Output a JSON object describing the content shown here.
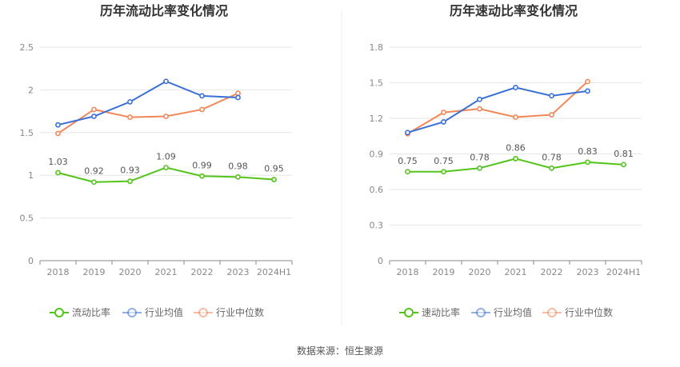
{
  "source": "数据来源：恒生聚源",
  "chart_data": [
    {
      "type": "line",
      "title": "历年流动比率变化情况",
      "categories": [
        "2018",
        "2019",
        "2020",
        "2021",
        "2022",
        "2023",
        "2024H1"
      ],
      "ylim": [
        0,
        2.5
      ],
      "yticks": [
        "0",
        "0.5",
        "1",
        "1.5",
        "2",
        "2.5"
      ],
      "grid": true,
      "legend_position": "bottom",
      "series": [
        {
          "name": "流动比率",
          "color": "#52c41a",
          "labeled": true,
          "values": [
            1.03,
            0.92,
            0.93,
            1.09,
            0.99,
            0.98,
            0.95
          ]
        },
        {
          "name": "行业均值",
          "color": "#3a70d6",
          "labeled": false,
          "values": [
            1.59,
            1.69,
            1.86,
            2.1,
            1.93,
            1.91,
            null
          ]
        },
        {
          "name": "行业中位数",
          "color": "#f0885a",
          "labeled": false,
          "values": [
            1.49,
            1.77,
            1.68,
            1.69,
            1.77,
            1.96,
            null
          ]
        }
      ],
      "data_labels": [
        "1.03",
        "0.92",
        "0.93",
        "1.09",
        "0.99",
        "0.98",
        "0.95"
      ]
    },
    {
      "type": "line",
      "title": "历年速动比率变化情况",
      "categories": [
        "2018",
        "2019",
        "2020",
        "2021",
        "2022",
        "2023",
        "2024H1"
      ],
      "ylim": [
        0,
        1.8
      ],
      "yticks": [
        "0",
        "0.3",
        "0.6",
        "0.9",
        "1.2",
        "1.5",
        "1.8"
      ],
      "grid": true,
      "legend_position": "bottom",
      "series": [
        {
          "name": "速动比率",
          "color": "#52c41a",
          "labeled": true,
          "values": [
            0.75,
            0.75,
            0.78,
            0.86,
            0.78,
            0.83,
            0.81
          ]
        },
        {
          "name": "行业均值",
          "color": "#3a70d6",
          "labeled": false,
          "values": [
            1.08,
            1.17,
            1.36,
            1.46,
            1.39,
            1.43,
            null
          ]
        },
        {
          "name": "行业中位数",
          "color": "#f0885a",
          "labeled": false,
          "values": [
            1.07,
            1.25,
            1.28,
            1.21,
            1.23,
            1.51,
            null
          ]
        }
      ],
      "data_labels": [
        "0.75",
        "0.75",
        "0.78",
        "0.86",
        "0.78",
        "0.83",
        "0.81"
      ]
    }
  ]
}
